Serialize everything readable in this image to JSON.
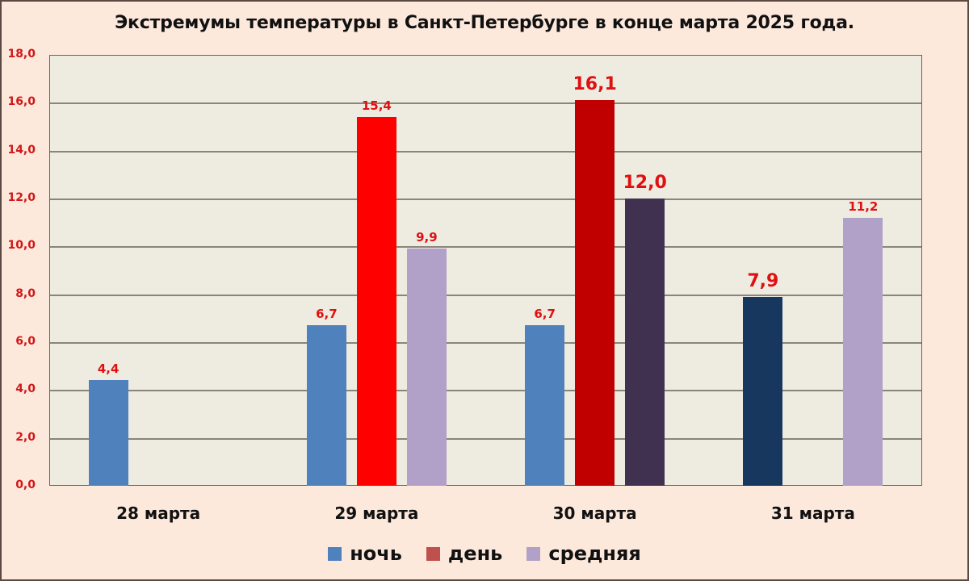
{
  "chart_data": {
    "type": "bar",
    "title": "Экстремумы температуры в Санкт-Петербурге в конце марта 2025 года.",
    "xlabel": "",
    "ylabel": "",
    "ylim": [
      0,
      18
    ],
    "yticks": [
      "0,0",
      "2,0",
      "4,0",
      "6,0",
      "8,0",
      "10,0",
      "12,0",
      "14,0",
      "16,0",
      "18,0"
    ],
    "grid": true,
    "legend_position": "bottom",
    "categories": [
      "28 марта",
      "29 марта",
      "30 марта",
      "31 марта"
    ],
    "series": [
      {
        "name": "ночь",
        "color": "#4f81bd",
        "values": [
          4.4,
          6.7,
          6.7,
          7.9
        ]
      },
      {
        "name": "день",
        "color": "#ff0000",
        "values": [
          null,
          15.4,
          16.1,
          null
        ]
      },
      {
        "name": "средняя",
        "color": "#b1a0c7",
        "values": [
          null,
          9.9,
          12.0,
          11.2
        ]
      }
    ],
    "bars": [
      {
        "category": "28 марта",
        "series": "ночь",
        "value": 4.4,
        "label": "4,4",
        "color": "#4f81bd",
        "highlight": false
      },
      {
        "category": "29 марта",
        "series": "ночь",
        "value": 6.7,
        "label": "6,7",
        "color": "#4f81bd",
        "highlight": false
      },
      {
        "category": "29 марта",
        "series": "день",
        "value": 15.4,
        "label": "15,4",
        "color": "#ff0000",
        "highlight": false
      },
      {
        "category": "29 марта",
        "series": "средняя",
        "value": 9.9,
        "label": "9,9",
        "color": "#b1a0c7",
        "highlight": false
      },
      {
        "category": "30 марта",
        "series": "ночь",
        "value": 6.7,
        "label": "6,7",
        "color": "#4f81bd",
        "highlight": false
      },
      {
        "category": "30 марта",
        "series": "день",
        "value": 16.1,
        "label": "16,1",
        "color": "#c00000",
        "highlight": true
      },
      {
        "category": "30 марта",
        "series": "средняя",
        "value": 12.0,
        "label": "12,0",
        "color": "#403151",
        "highlight": true
      },
      {
        "category": "31 марта",
        "series": "ночь",
        "value": 7.9,
        "label": "7,9",
        "color": "#17375e",
        "highlight": true
      },
      {
        "category": "31 марта",
        "series": "средняя",
        "value": 11.2,
        "label": "11,2",
        "color": "#b1a0c7",
        "highlight": false
      }
    ],
    "legend": [
      {
        "label": "ночь",
        "color": "#4f81bd"
      },
      {
        "label": "день",
        "color": "#c0504d"
      },
      {
        "label": "средняя",
        "color": "#b1a0c7"
      }
    ]
  },
  "colors": {
    "background": "#fde9dc",
    "plot_background": "#eeebe1",
    "label_red": "#e01010"
  }
}
